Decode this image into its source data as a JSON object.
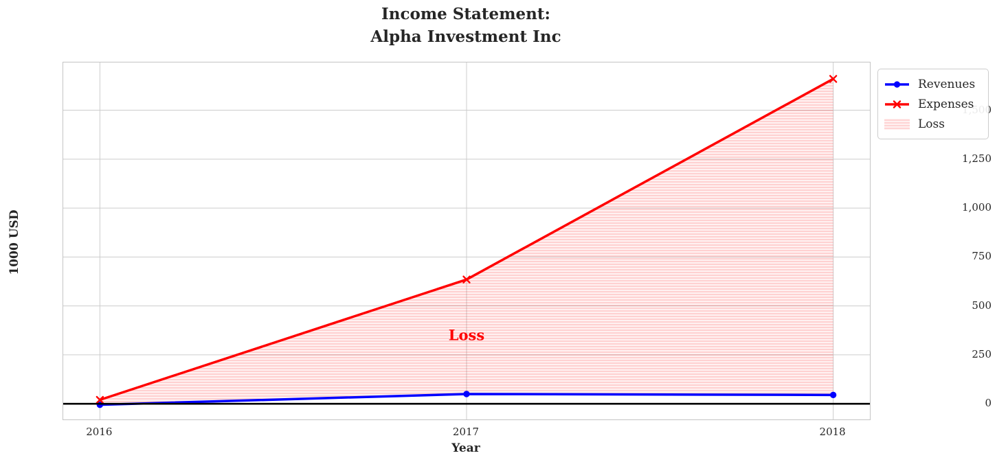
{
  "title": "Income Statement:\nAlpha Investment Inc",
  "chart_data": {
    "type": "line",
    "title": "Income Statement:\nAlpha Investment Inc",
    "xlabel": "Year",
    "ylabel": "1000 USD",
    "x": [
      2016,
      2017,
      2018
    ],
    "xtick_labels": [
      "2016",
      "2017",
      "2018"
    ],
    "series": [
      {
        "name": "Revenues",
        "values": [
          -5,
          50,
          45
        ],
        "color": "#0000ff",
        "marker": "circle",
        "line_width": 3.5
      },
      {
        "name": "Expenses",
        "values": [
          20,
          635,
          1660
        ],
        "color": "#ff0000",
        "marker": "x",
        "line_width": 3.5
      }
    ],
    "fill_between": {
      "label": "Loss",
      "lower_series": "Revenues",
      "upper_series": "Expenses",
      "hatch": "horizontal-lines",
      "color": "#ff0000"
    },
    "annotation": {
      "text": "Loss",
      "x": 2017,
      "y": 350,
      "color": "#ff0000"
    },
    "xlim": [
      2015.9,
      2018.1
    ],
    "ylim": [
      -80,
      1744
    ],
    "yticks": [
      0,
      250,
      500,
      750,
      1000,
      1250,
      1500
    ],
    "ytick_labels": [
      "0",
      "250",
      "500",
      "750",
      "1,000",
      "1,250",
      "1,500"
    ],
    "zero_line": true,
    "grid": true,
    "legend_position": "outside-top-right"
  },
  "legend": {
    "items": [
      {
        "label": "Revenues"
      },
      {
        "label": "Expenses"
      },
      {
        "label": "Loss"
      }
    ]
  },
  "colors": {
    "revenues": "#0000ff",
    "expenses": "#ff0000",
    "loss_fill_light": "#fdecec",
    "loss_fill_stripe": "#f8cfcf",
    "grid": "#cccccc",
    "spine": "#c4c4c4",
    "text": "#262626",
    "zero_line": "#000000",
    "background": "#ffffff"
  }
}
